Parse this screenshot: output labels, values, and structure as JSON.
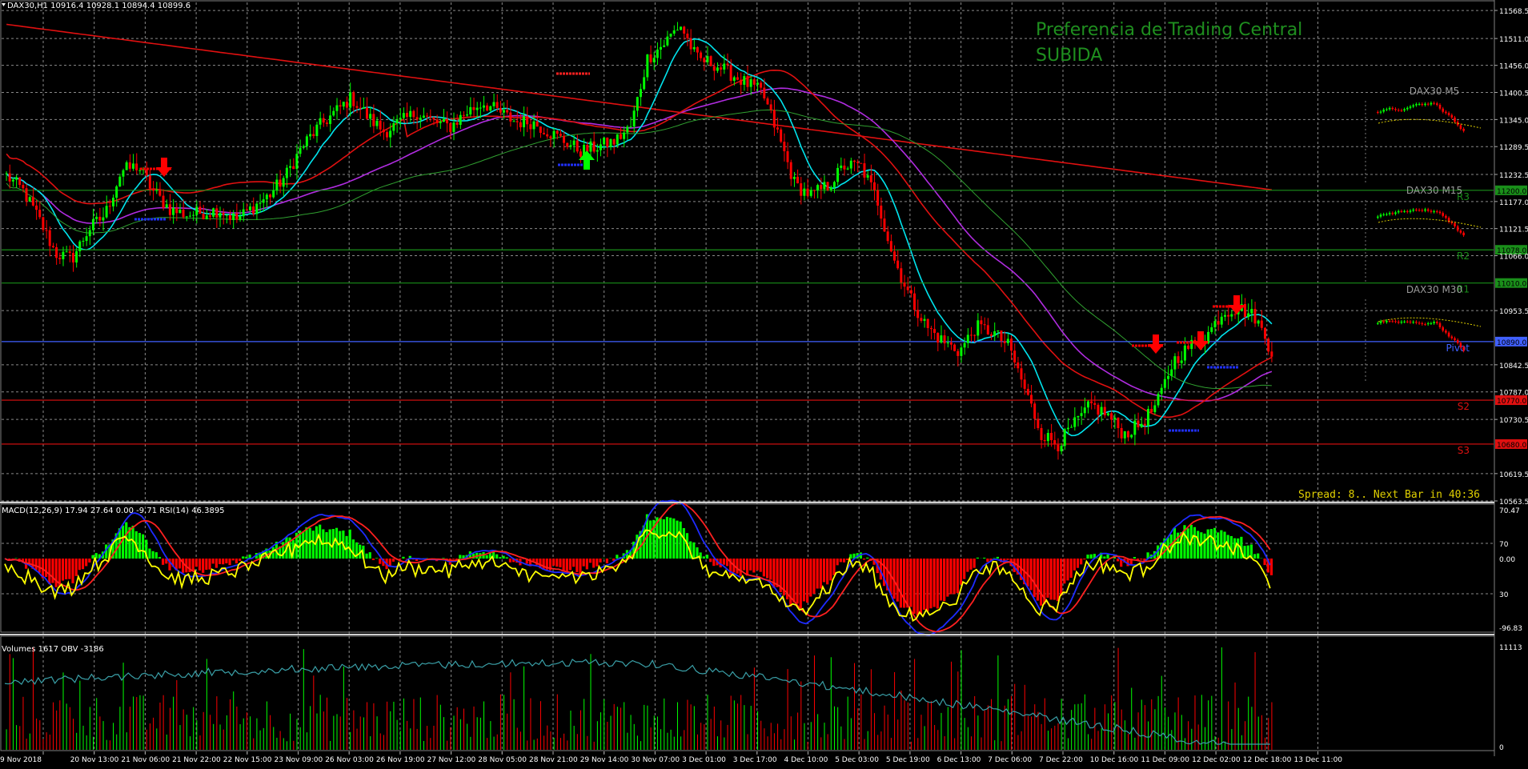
{
  "header": {
    "symbol_info": "DAX30,H1  10916.4 10928.1 10894.4 10899.6",
    "signal_title": "Preferencia de Trading Central",
    "signal_value": "SUBIDA",
    "spread_text": "Spread: 8.. Next Bar in 40:36"
  },
  "colors": {
    "background": "#000000",
    "bull_candle": "#00ff00",
    "bear_candle": "#ff0000",
    "ma_cyan": "#00e5ee",
    "ma_violet": "#b02ce0",
    "ma_red": "#e01010",
    "ma_green": "#30a030",
    "pivot_line": "#4060ff",
    "signal_text": "#1f8f1f",
    "macd_line": "#1e2bff",
    "signal_line": "#ff2020",
    "rsi_line": "#ffff00",
    "obv_line": "#3aa0a8"
  },
  "chart_data": [
    {
      "type": "candlestick",
      "panel": "price",
      "title": "DAX30,H1",
      "price_axis_ticks": [
        11568.5,
        11511.0,
        11456.0,
        11400.5,
        11345.0,
        11289.5,
        11232.5,
        11177.0,
        11121.5,
        11066.0,
        10953.5,
        10842.5,
        10787.0,
        10730.5,
        10619.5,
        10563.5
      ],
      "ylim": [
        10563.5,
        11585
      ],
      "x_labels": [
        "9 Nov 2018",
        "20 Nov 13:00",
        "21 Nov 06:00",
        "21 Nov 22:00",
        "22 Nov 15:00",
        "23 Nov 09:00",
        "26 Nov 03:00",
        "26 Nov 19:00",
        "27 Nov 12:00",
        "28 Nov 05:00",
        "28 Nov 21:00",
        "29 Nov 14:00",
        "30 Nov 07:00",
        "3 Dec 01:00",
        "3 Dec 17:00",
        "4 Dec 10:00",
        "5 Dec 03:00",
        "5 Dec 19:00",
        "6 Dec 13:00",
        "7 Dec 06:00",
        "7 Dec 22:00",
        "10 Dec 16:00",
        "11 Dec 09:00",
        "12 Dec 02:00",
        "12 Dec 18:00",
        "13 Dec 11:00"
      ],
      "close_path": [
        11230,
        11200,
        11140,
        11070,
        11060,
        11120,
        11150,
        11240,
        11250,
        11195,
        11160,
        11150,
        11155,
        11160,
        11140,
        11165,
        11190,
        11230,
        11290,
        11330,
        11360,
        11390,
        11350,
        11320,
        11340,
        11360,
        11340,
        11330,
        11360,
        11380,
        11360,
        11340,
        11340,
        11320,
        11300,
        11280,
        11290,
        11300,
        11330,
        11470,
        11500,
        11540,
        11470,
        11460,
        11440,
        11420,
        11400,
        11310,
        11210,
        11190,
        11210,
        11250,
        11250,
        11180,
        11060,
        10980,
        10920,
        10890,
        10870,
        10920,
        10910,
        10880,
        10790,
        10700,
        10680,
        10720,
        10760,
        10740,
        10700,
        10720,
        10760,
        10850,
        10880,
        10900,
        10950,
        10960,
        10940,
        10870
      ],
      "levels": [
        {
          "label": "R3",
          "value": 11200.0,
          "color": "#1a8f1a"
        },
        {
          "label": "R2",
          "value": 11078.0,
          "color": "#1a8f1a"
        },
        {
          "label": "R1",
          "value": 11010.0,
          "color": "#1a8f1a"
        },
        {
          "label": "Pivot",
          "value": 10890.0,
          "color": "#4060ff"
        },
        {
          "label": "S2",
          "value": 10770.0,
          "color": "#e01010"
        },
        {
          "label": "S3",
          "value": 10680.0,
          "color": "#e01010"
        }
      ],
      "level_tags": [
        "11200.0",
        "11078.0",
        "11010.0",
        "10890.0",
        "10770.0",
        "10680.0"
      ],
      "mini_charts": [
        "DAX30 M5",
        "DAX30 M15",
        "DAX30 M30"
      ],
      "pivot_side_labels": [
        "R3",
        "R2",
        "R1",
        "Pivot",
        "S2",
        "S3"
      ]
    },
    {
      "type": "line",
      "panel": "macd_rsi",
      "title": "MACD(12,26,9) 17.94 27.64 0.00 -9.71  RSI(14) 46.3895",
      "axis_ticks": [
        "70.47",
        "70",
        "0.00",
        "30",
        "-96.83"
      ]
    },
    {
      "type": "bar",
      "panel": "volume_obv",
      "title": "Volumes 1617  OBV -3186",
      "axis_ticks": [
        "11113",
        "0"
      ]
    }
  ]
}
